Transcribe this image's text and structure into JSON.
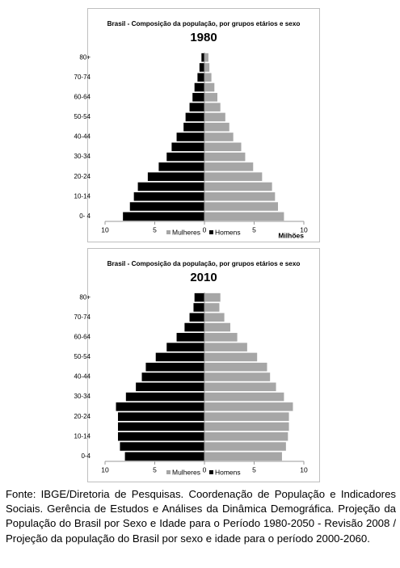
{
  "chart_data": [
    {
      "type": "pyramid",
      "title": "Brasil - Composição da população, por grupos etários e sexo",
      "subtitle": "1980",
      "categories": [
        "0- 4",
        null,
        "10-14",
        null,
        "20-24",
        null,
        "30-34",
        null,
        "40-44",
        null,
        "50-54",
        null,
        "60-64",
        null,
        "70-74",
        null,
        "80+"
      ],
      "series": [
        {
          "name": "Mulheres",
          "color": "#a6a6a6",
          "values": [
            8.0,
            7.4,
            7.1,
            6.8,
            5.8,
            4.9,
            4.1,
            3.7,
            2.9,
            2.5,
            2.1,
            1.6,
            1.3,
            1.0,
            0.7,
            0.5,
            0.4
          ]
        },
        {
          "name": "Homens",
          "color": "#000000",
          "values": [
            -8.2,
            -7.5,
            -7.1,
            -6.7,
            -5.7,
            -4.6,
            -3.8,
            -3.3,
            -2.8,
            -2.1,
            -1.9,
            -1.5,
            -1.2,
            -1.0,
            -0.7,
            -0.5,
            -0.3
          ]
        }
      ],
      "xlabel": "Milhões",
      "xlim": [
        -10,
        10
      ],
      "xticks": [
        {
          "value": -10,
          "label": "10"
        },
        {
          "value": -5,
          "label": "5"
        },
        0,
        5,
        10
      ],
      "legend": "bottom"
    },
    {
      "type": "pyramid",
      "title": "Brasil - Composição da população, por grupos etários e sexo",
      "subtitle": "2010",
      "categories": [
        "0-4",
        null,
        "10-14",
        null,
        "20-24",
        null,
        "30-34",
        null,
        "40-44",
        null,
        "50-54",
        null,
        "60-64",
        null,
        "70-74",
        null,
        "80+"
      ],
      "series": [
        {
          "name": "Mulheres",
          "color": "#a6a6a6",
          "values": [
            7.8,
            8.2,
            8.4,
            8.5,
            8.5,
            8.9,
            8.0,
            7.2,
            6.6,
            6.3,
            5.3,
            4.3,
            3.3,
            2.6,
            2.0,
            1.5,
            1.6
          ]
        },
        {
          "name": "Homens",
          "color": "#000000",
          "values": [
            -8.0,
            -8.5,
            -8.7,
            -8.7,
            -8.7,
            -8.9,
            -7.9,
            -6.9,
            -6.3,
            -5.9,
            -4.9,
            -3.8,
            -2.8,
            -2.0,
            -1.5,
            -1.1,
            -1.0
          ]
        }
      ],
      "xlim": [
        -10,
        10
      ],
      "xticks": [
        {
          "value": -10,
          "label": "10"
        },
        {
          "value": -5,
          "label": "5"
        },
        0,
        5,
        10
      ],
      "legend": "bottom"
    }
  ],
  "caption": "Fonte: IBGE/Diretoria de Pesquisas. Coordenação de População e Indicadores Sociais. Gerência de Estudos e Análises da Dinâmica Demográfica. Projeção da População do Brasil por Sexo e Idade para o Período 1980-2050 - Revisão 2008 / Projeção da população do Brasil por sexo e idade para o período 2000-2060."
}
